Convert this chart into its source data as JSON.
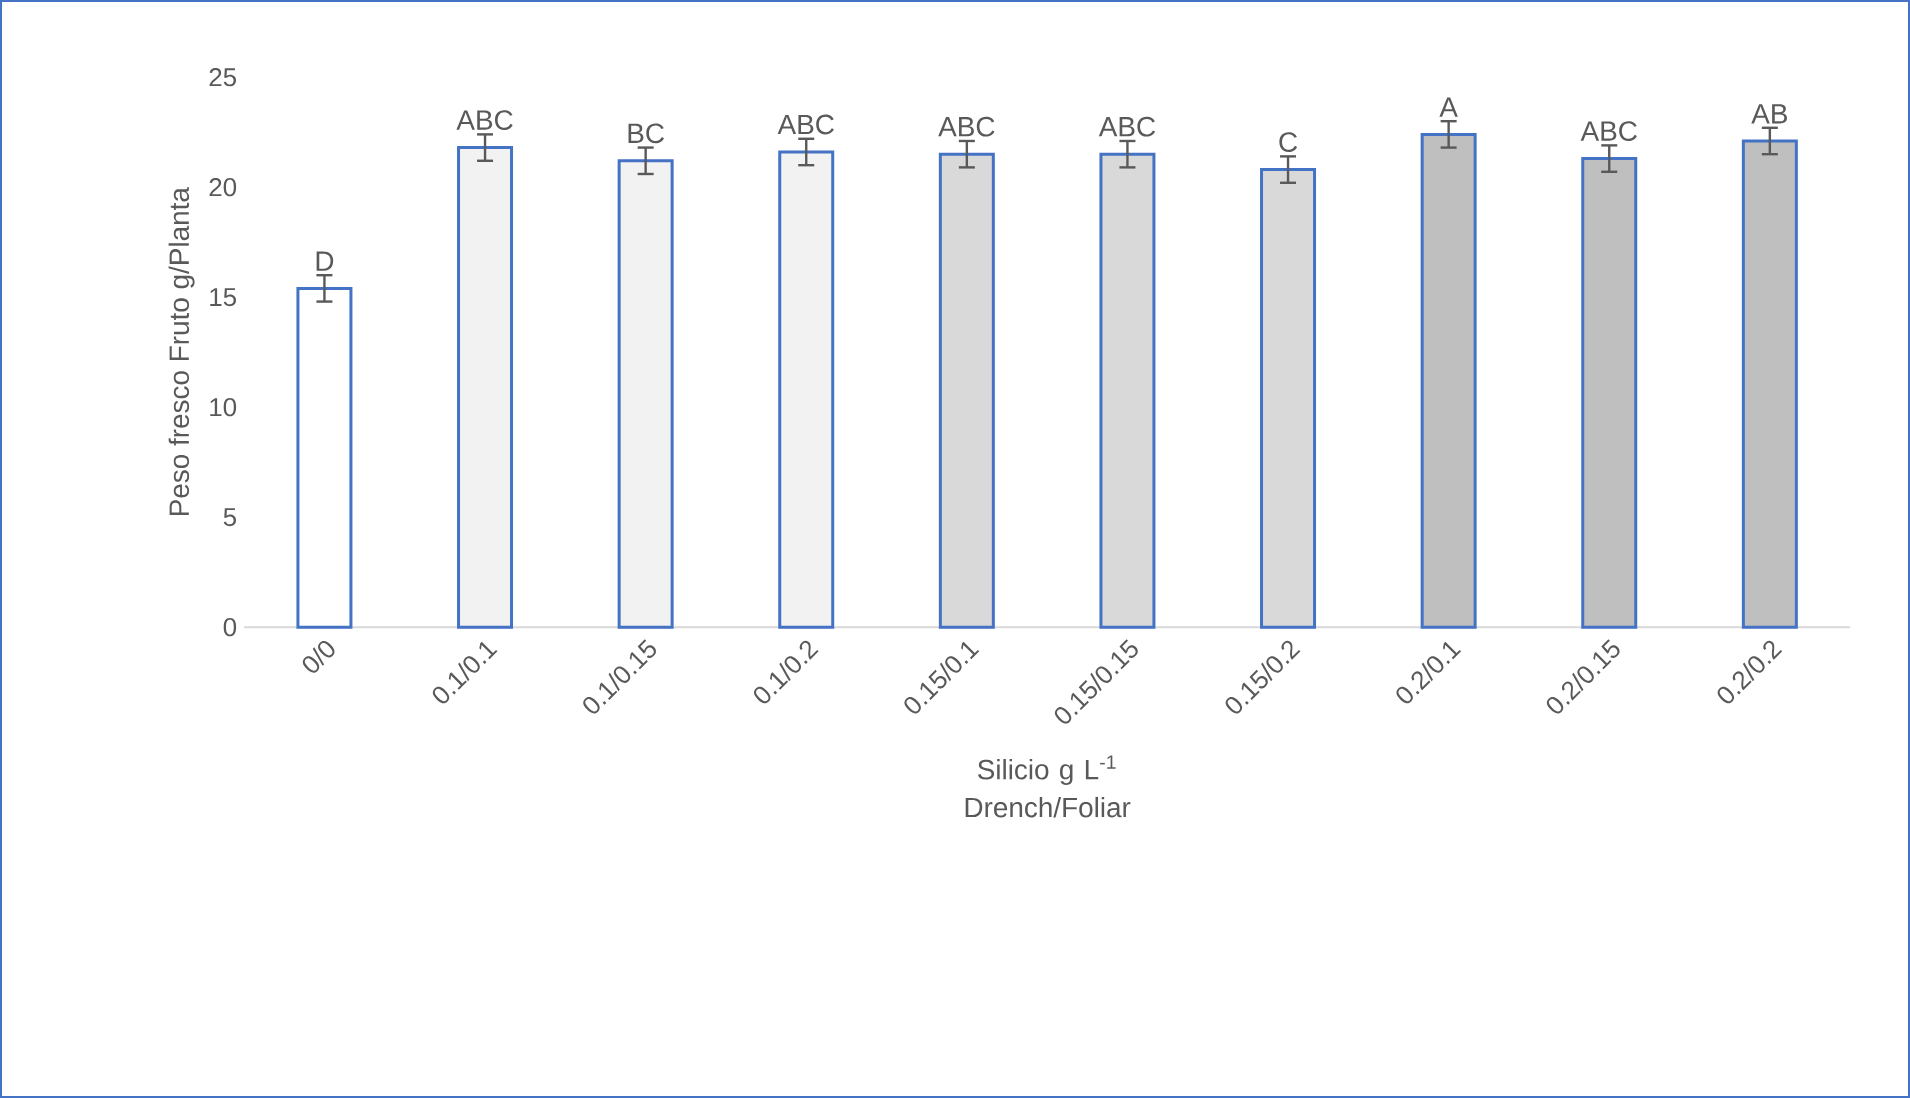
{
  "chart_data": {
    "type": "bar",
    "categories": [
      "0/0",
      "0.1/0.1",
      "0.1/0.15",
      "0.1/0.2",
      "0.15/0.1",
      "0.15/0.15",
      "0.15/0.2",
      "0.2/0.1",
      "0.2/0.15",
      "0.2/0.2"
    ],
    "values": [
      15.4,
      21.8,
      21.2,
      21.6,
      21.5,
      21.5,
      20.8,
      22.4,
      21.3,
      22.1
    ],
    "errors": [
      0.6,
      0.6,
      0.6,
      0.6,
      0.6,
      0.6,
      0.6,
      0.6,
      0.6,
      0.6
    ],
    "colors": [
      "#ffffff",
      "#f2f2f2",
      "#f2f2f2",
      "#f2f2f2",
      "#d9d9d9",
      "#d9d9d9",
      "#d9d9d9",
      "#bfbfbf",
      "#bfbfbf",
      "#bfbfbf"
    ],
    "xlabel": "Silicio g L$^{-1}$ Drench/Foliar",
    "ylabel": "Peso fresco Fruto g/Planta",
    "ylim": [
      0,
      25
    ],
    "yticks": [
      0,
      5,
      10,
      15,
      20,
      25
    ],
    "annotations": [
      {
        "text": "D",
        "x": "0/0",
        "y": 16.0
      },
      {
        "text": "ABC",
        "x": "0.1/0.1",
        "y": 22.4
      },
      {
        "text": "BC",
        "x": "0.1/0.15",
        "y": 21.8
      },
      {
        "text": "ABC",
        "x": "0.1/0.2",
        "y": 22.2
      },
      {
        "text": "ABC",
        "x": "0.15/0.1",
        "y": 22.1
      },
      {
        "text": "ABC",
        "x": "0.15/0.15",
        "y": 22.1
      },
      {
        "text": "C",
        "x": "0.15/0.2",
        "y": 21.4
      },
      {
        "text": "A",
        "x": "0.2/0.1",
        "y": 23.0
      },
      {
        "text": "ABC",
        "x": "0.2/0.15",
        "y": 21.9
      },
      {
        "text": "AB",
        "x": "0.2/0.2",
        "y": 22.7
      }
    ],
    "grid": false
  }
}
